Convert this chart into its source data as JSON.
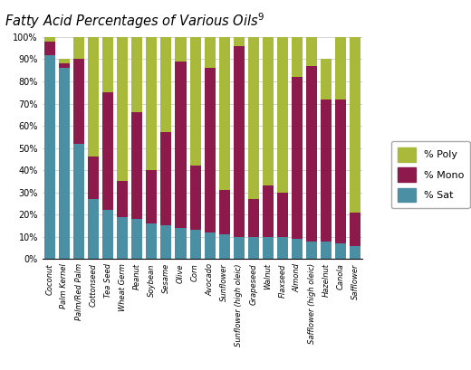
{
  "title": "Fatty Acid Percentages of Various Oils",
  "title_superscript": "9",
  "categories": [
    "Coconut",
    "Palm Kernel",
    "Palm/Red Palm",
    "Cottonseed",
    "Tea Seed",
    "Wheat Germ",
    "Peanut",
    "Soybean",
    "Sesame",
    "Olive",
    "Corn",
    "Avocado",
    "Sunflower",
    "Sunflower (high oleic)",
    "Grapeseed",
    "Walnut",
    "Flaxseed",
    "Almond",
    "Safflower (high oleic)",
    "Hazelnut",
    "Canola",
    "Safflower"
  ],
  "sat": [
    92,
    86,
    52,
    27,
    22,
    19,
    18,
    16,
    15,
    14,
    13,
    12,
    11,
    10,
    10,
    10,
    10,
    9,
    8,
    8,
    7,
    6
  ],
  "mono": [
    6,
    2,
    38,
    19,
    53,
    16,
    48,
    24,
    42,
    75,
    29,
    74,
    20,
    86,
    17,
    23,
    20,
    73,
    79,
    64,
    65,
    15
  ],
  "poly": [
    2,
    2,
    10,
    54,
    25,
    65,
    34,
    60,
    43,
    11,
    58,
    14,
    69,
    4,
    73,
    67,
    70,
    18,
    13,
    18,
    28,
    79
  ],
  "color_sat": "#4a8fa3",
  "color_mono": "#8c1a4b",
  "color_poly": "#a9b93a",
  "ylabel_ticks": [
    "0%",
    "10%",
    "20%",
    "30%",
    "40%",
    "50%",
    "60%",
    "70%",
    "80%",
    "90%",
    "100%"
  ],
  "background_color": "#ffffff",
  "grid_color": "#cccccc",
  "bar_width": 0.75,
  "figsize": [
    5.2,
    4.09
  ],
  "dpi": 100
}
